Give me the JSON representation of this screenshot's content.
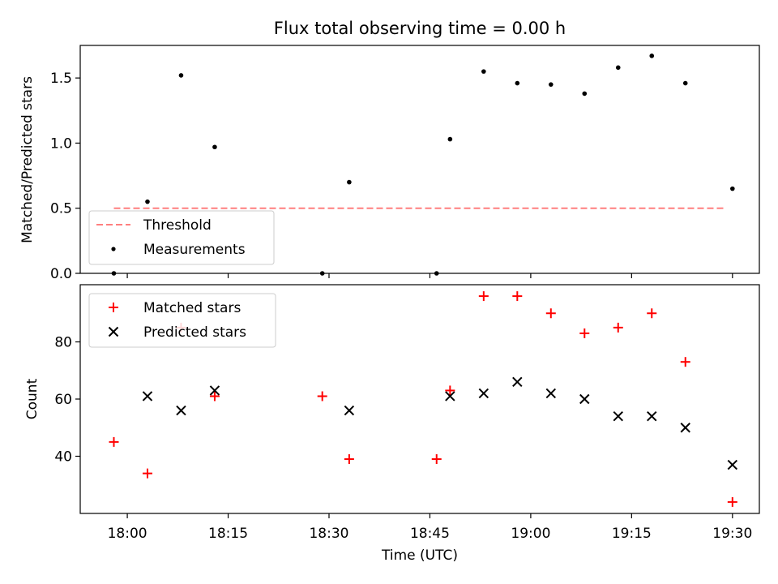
{
  "chart_data": [
    {
      "type": "scatter",
      "title": "Flux total observing time = 0.00 h",
      "xlabel": "",
      "ylabel": "Matched/Predicted stars",
      "xlim": [
        "17:53",
        "19:34"
      ],
      "ylim": [
        0,
        1.75
      ],
      "yticks": [
        0.0,
        0.5,
        1.0,
        1.5
      ],
      "ytick_labels": [
        "0.0",
        "0.5",
        "1.0",
        "1.5"
      ],
      "xticks": [
        "18:00",
        "18:15",
        "18:30",
        "18:45",
        "19:00",
        "19:15",
        "19:30"
      ],
      "grid": false,
      "legend_location": "lower left",
      "series": [
        {
          "name": "Threshold",
          "kind": "line",
          "style": "dashed",
          "color": "#ff7f7f",
          "x": [
            "17:58",
            "19:29"
          ],
          "y": [
            0.5,
            0.5
          ]
        },
        {
          "name": "Measurements",
          "kind": "scatter",
          "marker": "dot",
          "color": "#000000",
          "x": [
            "17:58",
            "18:03",
            "18:08",
            "18:13",
            "18:29",
            "18:33",
            "18:46",
            "18:48",
            "18:53",
            "18:58",
            "19:03",
            "19:08",
            "19:13",
            "19:18",
            "19:23",
            "19:30"
          ],
          "y": [
            0.0,
            0.55,
            1.52,
            0.97,
            0.0,
            0.7,
            0.0,
            1.03,
            1.55,
            1.46,
            1.45,
            1.38,
            1.58,
            1.67,
            1.46,
            0.65
          ]
        }
      ]
    },
    {
      "type": "scatter",
      "title": "",
      "xlabel": "Time (UTC)",
      "ylabel": "Count",
      "xlim": [
        "17:53",
        "19:34"
      ],
      "ylim": [
        20,
        100
      ],
      "yticks": [
        40,
        60,
        80
      ],
      "ytick_labels": [
        "40",
        "60",
        "80"
      ],
      "xticks": [
        "18:00",
        "18:15",
        "18:30",
        "18:45",
        "19:00",
        "19:15",
        "19:30"
      ],
      "xtick_labels": [
        "18:00",
        "18:15",
        "18:30",
        "18:45",
        "19:00",
        "19:15",
        "19:30"
      ],
      "grid": false,
      "legend_location": "upper left",
      "series": [
        {
          "name": "Matched stars",
          "kind": "scatter",
          "marker": "plus",
          "color": "#ff0000",
          "x": [
            "17:58",
            "18:03",
            "18:08",
            "18:13",
            "18:29",
            "18:33",
            "18:46",
            "18:48",
            "18:53",
            "18:58",
            "19:03",
            "19:08",
            "19:13",
            "19:18",
            "19:23",
            "19:30"
          ],
          "y": [
            45,
            34,
            85,
            61,
            61,
            39,
            39,
            63,
            96,
            96,
            90,
            83,
            85,
            90,
            73,
            24
          ]
        },
        {
          "name": "Predicted stars",
          "kind": "scatter",
          "marker": "x",
          "color": "#000000",
          "x": [
            "18:03",
            "18:08",
            "18:13",
            "18:33",
            "18:48",
            "18:53",
            "18:58",
            "19:03",
            "19:08",
            "19:13",
            "19:18",
            "19:23",
            "19:30"
          ],
          "y": [
            61,
            56,
            63,
            56,
            61,
            62,
            66,
            62,
            60,
            54,
            54,
            50,
            37
          ]
        }
      ]
    }
  ]
}
